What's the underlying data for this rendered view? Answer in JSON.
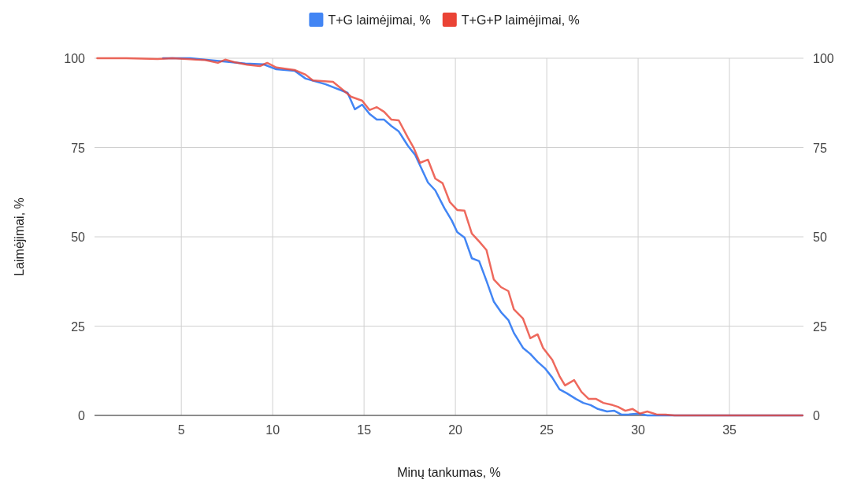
{
  "chart_data": {
    "type": "line",
    "xlabel": "Minų tankumas, %",
    "ylabel": "Laimėjimai, %",
    "xlim": [
      0.25,
      39.05
    ],
    "xticks": [
      5,
      10,
      15,
      20,
      25,
      30,
      35
    ],
    "ylim": [
      0,
      100
    ],
    "yticks": [
      0,
      25,
      50,
      75,
      100
    ],
    "y2lim": [
      0,
      100
    ],
    "y2ticks": [
      0,
      25,
      50,
      75,
      100
    ],
    "grid": true,
    "legend": "top",
    "marker": "none",
    "line_style": "solid",
    "series": [
      {
        "name": "T+G laimėjimai, %",
        "color": "#4285f4",
        "x": [
          4,
          5.5,
          6.5,
          7.5,
          8.5,
          9.5,
          10.2,
          11.2,
          11.8,
          12.9,
          14.1,
          14.5,
          14.9,
          15.3,
          15.7,
          16.1,
          16.5,
          16.9,
          17.4,
          17.8,
          18.1,
          18.5,
          18.9,
          19.4,
          19.8,
          20.1,
          20.5,
          20.9,
          21.3,
          21.7,
          22.1,
          22.5,
          22.9,
          23.2,
          23.7,
          24.1,
          24.5,
          24.9,
          25.3,
          25.7,
          26.1,
          26.6,
          27,
          27.4,
          27.8,
          28.3,
          28.7,
          29.1,
          29.5,
          30,
          30.5,
          32,
          35,
          39
        ],
        "values": [
          100,
          100,
          99.5,
          99,
          98.5,
          98.3,
          96.9,
          96.5,
          94.3,
          92.7,
          90.3,
          85.7,
          87,
          84.4,
          82.8,
          82.8,
          81,
          79.5,
          75.5,
          72.9,
          69.6,
          65.2,
          63,
          58,
          54.6,
          51.3,
          49.8,
          44,
          43.2,
          37.7,
          31.9,
          28.9,
          26.7,
          23.1,
          18.9,
          17.2,
          15,
          13.2,
          10.6,
          7.3,
          6.2,
          4.6,
          3.5,
          2.9,
          1.8,
          1.1,
          1.3,
          0.2,
          0.3,
          0.5,
          0,
          0,
          0,
          0
        ]
      },
      {
        "name": "T+G+P laimėjimai, %",
        "color": "#ea4335",
        "x": [
          0.4,
          2,
          3.7,
          4.5,
          5.3,
          5.8,
          6.3,
          7,
          7.4,
          7.9,
          8.6,
          9.3,
          9.7,
          10.2,
          11.2,
          11.8,
          12.2,
          13.3,
          14.3,
          14.9,
          15.3,
          15.7,
          16.1,
          16.5,
          16.9,
          17.4,
          17.7,
          18.06,
          18.5,
          18.9,
          19.3,
          19.7,
          20.1,
          20.5,
          20.9,
          21.3,
          21.7,
          22.1,
          22.5,
          22.9,
          23.2,
          23.7,
          24.1,
          24.5,
          24.8,
          25.3,
          25.7,
          26,
          26.5,
          26.9,
          27.3,
          27.7,
          28.1,
          28.6,
          28.9,
          29.3,
          29.7,
          30.1,
          30.5,
          31,
          31.5,
          32,
          35,
          39
        ],
        "values": [
          100,
          100,
          99.8,
          100,
          99.8,
          99.6,
          99.5,
          98.7,
          99.6,
          98.9,
          98.2,
          97.8,
          98.7,
          97.4,
          96.7,
          95.4,
          93.8,
          93.4,
          89.2,
          88.1,
          85.5,
          86.3,
          85,
          82.8,
          82.6,
          77.8,
          75.1,
          70.7,
          71.6,
          66.3,
          65,
          59.7,
          57.5,
          57.3,
          50.9,
          48.7,
          46.3,
          38.1,
          35.9,
          34.8,
          29.7,
          27.1,
          21.6,
          22.7,
          18.9,
          15.6,
          11,
          8.4,
          9.9,
          6.6,
          4.6,
          4.6,
          3.5,
          2.9,
          2.4,
          1.3,
          1.8,
          0.5,
          1.1,
          0.3,
          0.2,
          0,
          0,
          0
        ]
      }
    ]
  }
}
